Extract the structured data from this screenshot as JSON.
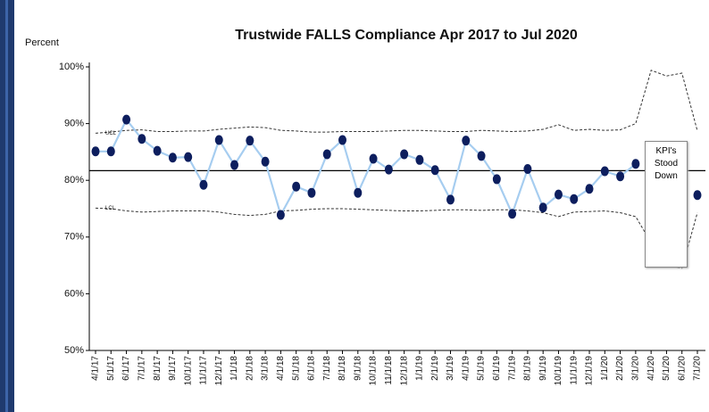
{
  "chart_data": {
    "type": "line",
    "title": "Trustwide FALLS Compliance Apr 2017 to Jul 2020",
    "y_label": "Percent",
    "annotation": "KPI's Stood Down",
    "categories": [
      "4/1/17",
      "5/1/17",
      "6/1/17",
      "7/1/17",
      "8/1/17",
      "9/1/17",
      "10/1/17",
      "11/1/17",
      "12/1/17",
      "1/1/18",
      "2/1/18",
      "3/1/18",
      "4/1/18",
      "5/1/18",
      "6/1/18",
      "7/1/18",
      "8/1/18",
      "9/1/18",
      "10/1/18",
      "11/1/18",
      "12/1/18",
      "1/1/19",
      "2/1/19",
      "3/1/19",
      "4/1/19",
      "5/1/19",
      "6/1/19",
      "7/1/19",
      "8/1/19",
      "9/1/19",
      "10/1/19",
      "11/1/19",
      "12/1/19",
      "1/1/20",
      "2/1/20",
      "3/1/20",
      "4/1/20",
      "5/1/20",
      "6/1/20",
      "7/1/20"
    ],
    "values": [
      85.1,
      85.1,
      90.7,
      87.3,
      85.2,
      84.0,
      84.1,
      79.2,
      87.1,
      82.7,
      87.0,
      83.3,
      73.9,
      78.9,
      77.8,
      84.6,
      87.1,
      77.8,
      83.8,
      81.9,
      84.6,
      83.6,
      81.8,
      76.6,
      87.0,
      84.3,
      80.2,
      74.1,
      82.0,
      75.2,
      77.5,
      76.7,
      78.5,
      81.6,
      80.7,
      82.9,
      null,
      null,
      null,
      77.4
    ],
    "color": "#a6cdf0",
    "marker_color": "#0d1e5e",
    "mean": 81.7,
    "ucl": {
      "label": "UCL",
      "values": [
        88.3,
        88.5,
        88.8,
        88.9,
        88.6,
        88.6,
        88.7,
        88.7,
        89.0,
        89.2,
        89.4,
        89.3,
        88.8,
        88.7,
        88.5,
        88.5,
        88.6,
        88.6,
        88.6,
        88.7,
        88.8,
        88.8,
        88.7,
        88.6,
        88.6,
        88.8,
        88.7,
        88.6,
        88.7,
        89.0,
        89.8,
        88.8,
        89.0,
        88.8,
        88.9,
        90.0,
        99.4,
        98.4,
        98.9,
        88.7
      ]
    },
    "lcl": {
      "label": "LCL",
      "values": [
        75.1,
        75.0,
        74.6,
        74.4,
        74.5,
        74.6,
        74.6,
        74.6,
        74.4,
        74.0,
        73.8,
        74.0,
        74.6,
        74.7,
        74.9,
        75.0,
        75.0,
        74.9,
        74.8,
        74.7,
        74.6,
        74.6,
        74.7,
        74.8,
        74.8,
        74.7,
        74.8,
        74.8,
        74.6,
        74.3,
        73.6,
        74.4,
        74.5,
        74.6,
        74.3,
        73.6,
        69.0,
        65.0,
        64.5,
        74.3
      ]
    },
    "ylim": [
      50,
      100
    ],
    "yticks": [
      {
        "value": 50,
        "label": "50%"
      },
      {
        "value": 60,
        "label": "60%"
      },
      {
        "value": 70,
        "label": "70%"
      },
      {
        "value": 80,
        "label": "80%"
      },
      {
        "value": 90,
        "label": "90%"
      },
      {
        "value": 100,
        "label": "100%"
      }
    ]
  }
}
